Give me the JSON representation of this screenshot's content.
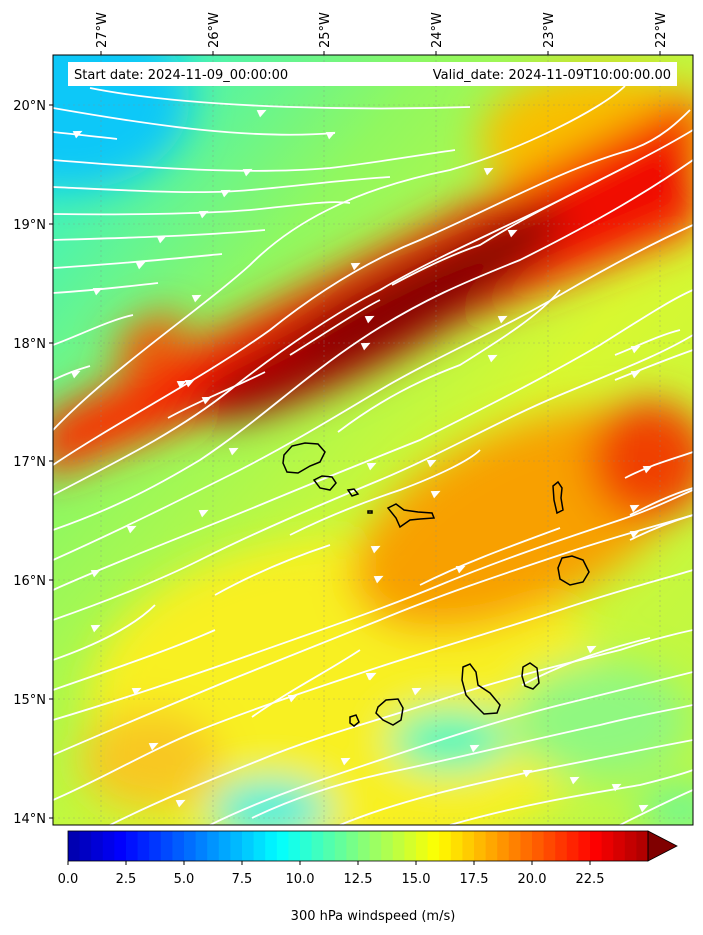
{
  "map": {
    "start_label": "Start date: 2024-11-09_00:00:00",
    "valid_label": "Valid_date: 2024-11-09T10:00:00.00",
    "lon_ticks": [
      "27°W",
      "26°W",
      "25°W",
      "24°W",
      "23°W",
      "22°W"
    ],
    "lat_ticks": [
      "20°N",
      "19°N",
      "18°N",
      "17°N",
      "16°N",
      "15°N",
      "14°N"
    ],
    "lon_range": [
      -27.4,
      -21.7
    ],
    "lat_range": [
      13.95,
      20.45
    ]
  },
  "colorbar": {
    "label": "300 hPa windspeed (m/s)",
    "min": 0,
    "max": 25,
    "step": 0.5,
    "extend": "max",
    "ticks": [
      "0.0",
      "2.5",
      "5.0",
      "7.5",
      "10.0",
      "12.5",
      "15.0",
      "17.5",
      "20.0",
      "22.5"
    ],
    "extend_color": "#800000"
  }
}
